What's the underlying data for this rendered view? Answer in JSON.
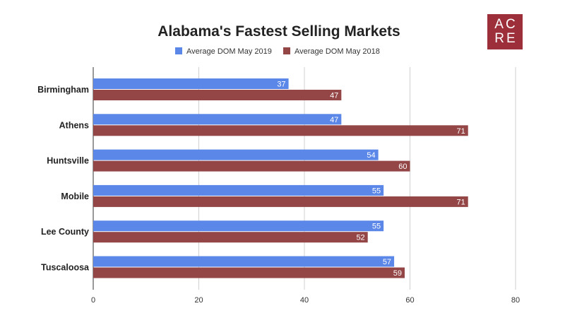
{
  "logo": {
    "line1": "AC",
    "line2": "RE",
    "color": "#9c2f3a"
  },
  "chart_data": {
    "type": "bar",
    "orientation": "horizontal",
    "title": "Alabama's Fastest Selling Markets",
    "xlabel": "",
    "ylabel": "",
    "categories": [
      "Birmingham",
      "Athens",
      "Huntsville",
      "Mobile",
      "Lee County",
      "Tuscaloosa"
    ],
    "series": [
      {
        "name": "Average DOM May 2019",
        "color": "#5b87e8",
        "values": [
          37,
          47,
          54,
          55,
          55,
          57
        ]
      },
      {
        "name": "Average DOM May 2018",
        "color": "#944646",
        "values": [
          47,
          71,
          60,
          71,
          52,
          59
        ]
      }
    ],
    "xlim": [
      0,
      80
    ],
    "xticks": [
      0,
      20,
      40,
      60,
      80
    ],
    "grid": true,
    "legend": "top-center",
    "data_labels": true
  }
}
